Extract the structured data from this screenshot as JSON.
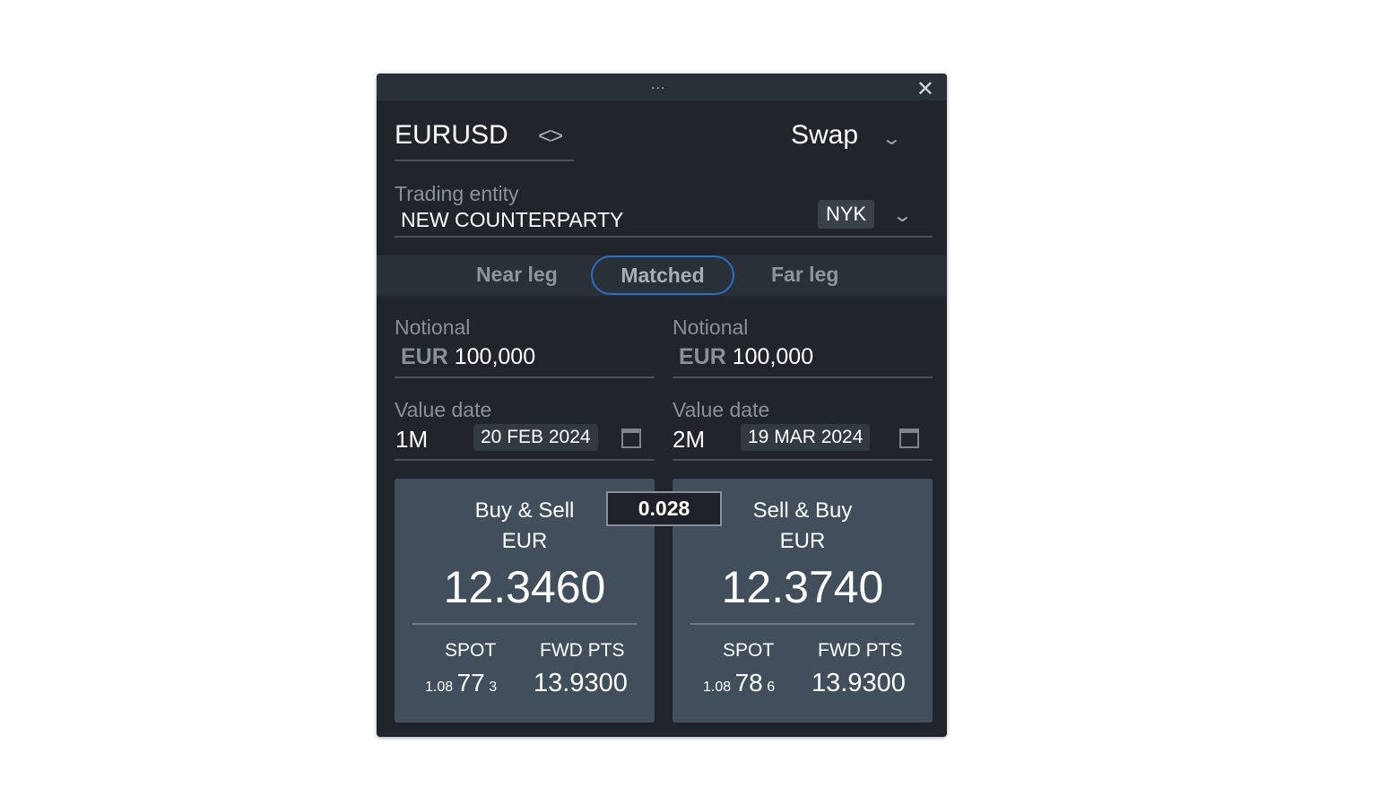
{
  "window": {
    "drag_handle": "...",
    "close": "✕"
  },
  "header": {
    "pair": "EURUSD",
    "type": "Swap"
  },
  "entity": {
    "label": "Trading entity",
    "value": "NEW COUNTERPARTY",
    "location": "NYK"
  },
  "tabs": [
    {
      "label": "Near leg"
    },
    {
      "label": "Matched",
      "active": true
    },
    {
      "label": "Far leg"
    }
  ],
  "near": {
    "notional_label": "Notional",
    "currency": "EUR",
    "amount": "100,000",
    "date_label": "Value date",
    "tenor": "1M",
    "date": "20 FEB 2024"
  },
  "far": {
    "notional_label": "Notional",
    "currency": "EUR",
    "amount": "100,000",
    "date_label": "Value date",
    "tenor": "2M",
    "date": "19 MAR 2024"
  },
  "spread": "0.028",
  "cards": [
    {
      "side": "Buy & Sell",
      "currency": "EUR",
      "price": "12.3460",
      "spot_label": "SPOT",
      "spot_big": "1.08",
      "spot_pips": "77",
      "spot_frac": "3",
      "fwd_label": "FWD PTS",
      "fwd": "13.9300"
    },
    {
      "side": "Sell & Buy",
      "currency": "EUR",
      "price": "12.3740",
      "spot_label": "SPOT",
      "spot_big": "1.08",
      "spot_pips": "78",
      "spot_frac": "6",
      "fwd_label": "FWD PTS",
      "fwd": "13.9300"
    }
  ],
  "colors": {
    "accent": "#2f6cc4",
    "card": "#414e5c",
    "panel": "#20252c"
  }
}
